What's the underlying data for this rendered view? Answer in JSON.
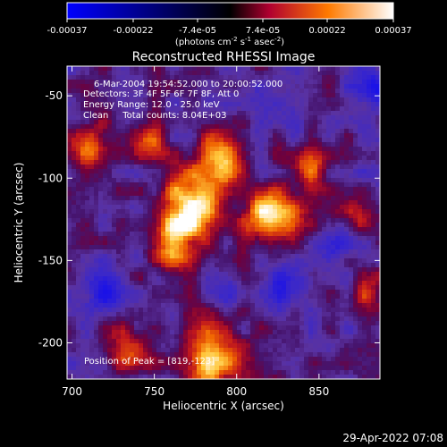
{
  "colorbar": {
    "tick_labels": [
      "-0.00037",
      "-0.00022",
      "-7.4e-05",
      "7.4e-05",
      "0.00022",
      "0.00037"
    ],
    "tick_values": [
      -0.00037,
      -0.00022,
      -7.4e-05,
      7.4e-05,
      0.00022,
      0.00037
    ],
    "range": [
      -0.00037,
      0.00037
    ],
    "units_label_parts": [
      "(photons cm",
      "-2",
      " s",
      "-1",
      " asec",
      "-2",
      ")"
    ]
  },
  "chart_data": {
    "type": "heatmap",
    "title": "Reconstructed RHESSI Image",
    "xlabel": "Heliocentric X (arcsec)",
    "ylabel": "Heliocentric Y (arcsec)",
    "xlim": [
      697,
      887
    ],
    "ylim": [
      -222,
      -32
    ],
    "x_ticks": [
      700,
      750,
      800,
      850
    ],
    "x_tick_labels": [
      "700",
      "750",
      "800",
      "850"
    ],
    "y_ticks": [
      -50,
      -100,
      -150,
      -200
    ],
    "y_tick_labels": [
      "-50",
      "-100",
      "-150",
      "-200"
    ],
    "annotations": [
      "6-Mar-2004 19:54:52.000 to 20:00:52.000",
      "Detectors: 3F 4F 5F 6F 7F 8F, Att 0",
      "Energy Range: 12.0 - 25.0 keV",
      "Clean     Total counts: 8.04E+03"
    ],
    "peak_label": "Position of Peak = [819,-123]",
    "peak_position": [
      819,
      -123
    ],
    "grid": false,
    "colormap": "blue-white-red/hot",
    "hot_spots": [
      {
        "x": 772,
        "y": -118,
        "sigma": 14,
        "amp": 1.0
      },
      {
        "x": 821,
        "y": -124,
        "sigma": 11,
        "amp": 1.05
      },
      {
        "x": 790,
        "y": -88,
        "sigma": 12,
        "amp": 0.7
      },
      {
        "x": 760,
        "y": -140,
        "sigma": 10,
        "amp": 0.7
      },
      {
        "x": 785,
        "y": -210,
        "sigma": 14,
        "amp": 0.8
      },
      {
        "x": 735,
        "y": -205,
        "sigma": 10,
        "amp": 0.55
      },
      {
        "x": 712,
        "y": -80,
        "sigma": 10,
        "amp": 0.6
      },
      {
        "x": 843,
        "y": -93,
        "sigma": 9,
        "amp": 0.6
      },
      {
        "x": 748,
        "y": -78,
        "sigma": 8,
        "amp": 0.45
      },
      {
        "x": 880,
        "y": -170,
        "sigma": 10,
        "amp": 0.35
      },
      {
        "x": 872,
        "y": -125,
        "sigma": 8,
        "amp": 0.4
      }
    ],
    "cold_spots": [
      {
        "x": 720,
        "y": -170,
        "sigma": 9,
        "amp": 0.6
      },
      {
        "x": 835,
        "y": -165,
        "sigma": 10,
        "amp": 0.55
      },
      {
        "x": 880,
        "y": -45,
        "sigma": 7,
        "amp": 0.7
      },
      {
        "x": 860,
        "y": -140,
        "sigma": 8,
        "amp": 0.5
      },
      {
        "x": 795,
        "y": -170,
        "sigma": 7,
        "amp": 0.4
      }
    ]
  },
  "footer": {
    "date_stamp": "29-Apr-2022 07:08"
  }
}
